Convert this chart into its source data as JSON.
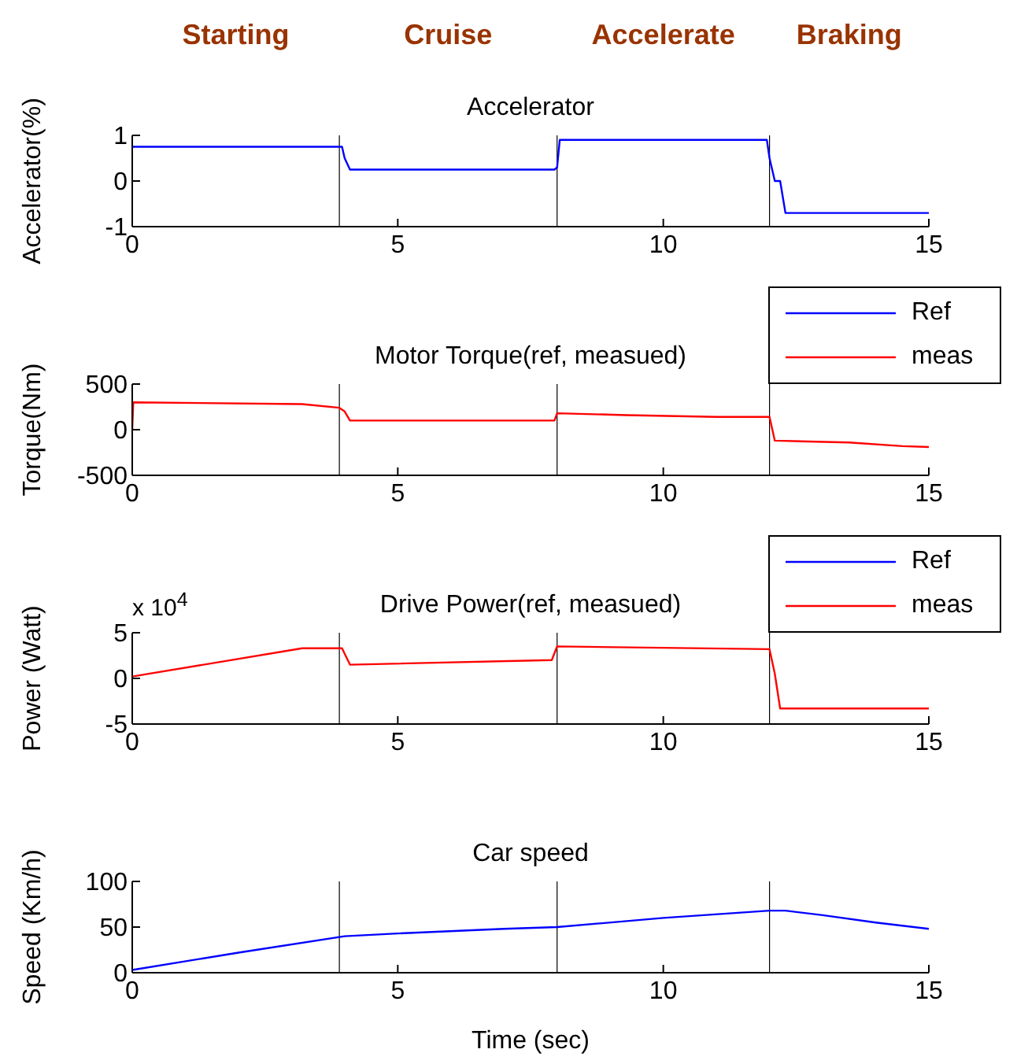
{
  "chart_data": [
    {
      "type": "line",
      "title": "Accelerator",
      "ylabel": "Accelerator(%)",
      "annotations": [
        "Starting",
        "Cruise",
        "Accelerate",
        "Braking"
      ],
      "x": [
        0,
        3.95,
        4.0,
        4.1,
        7.95,
        8.0,
        8.05,
        11.95,
        12.0,
        12.1,
        12.2,
        12.3,
        15
      ],
      "series": [
        {
          "color": "#0000ff",
          "values": [
            0.75,
            0.75,
            0.5,
            0.25,
            0.25,
            0.3,
            0.9,
            0.9,
            0.5,
            0.0,
            0.0,
            -0.7,
            -0.7
          ]
        }
      ],
      "xlim": [
        0,
        15
      ],
      "xticks": [
        0,
        5,
        10,
        15
      ],
      "ylim": [
        -1,
        1
      ],
      "yticks": [
        -1,
        0,
        1
      ],
      "ref_lines": [
        {
          "axis": "x",
          "value": 3.9,
          "color": "#000000"
        },
        {
          "axis": "x",
          "value": 8,
          "color": "#000000"
        },
        {
          "axis": "x",
          "value": 12,
          "color": "#000000"
        }
      ],
      "grid": false,
      "legend": false
    },
    {
      "type": "line",
      "title": "Motor Torque(ref, measued)",
      "ylabel": "Torque(Nm)",
      "x": [
        0,
        0.02,
        3.2,
        3.9,
        4.0,
        4.1,
        7.95,
        8.0,
        9.3,
        11.0,
        12.0,
        12.1,
        13.5,
        14.5,
        15
      ],
      "series": [
        {
          "name": "Ref",
          "color": "#0000ff",
          "values": [
            null,
            null,
            null,
            null,
            null,
            null,
            null,
            null,
            null,
            null,
            null,
            null,
            null,
            null,
            null
          ]
        },
        {
          "name": "meas",
          "color": "#ff0000",
          "values": [
            0,
            300,
            280,
            240,
            200,
            100,
            100,
            180,
            160,
            140,
            140,
            -120,
            -140,
            -180,
            -190
          ]
        }
      ],
      "xlim": [
        0,
        15
      ],
      "xticks": [
        0,
        5,
        10,
        15
      ],
      "ylim": [
        -500,
        500
      ],
      "yticks": [
        -500,
        0,
        500
      ],
      "ref_lines": [
        {
          "axis": "x",
          "value": 3.9,
          "color": "#000000"
        },
        {
          "axis": "x",
          "value": 8,
          "color": "#000000"
        },
        {
          "axis": "x",
          "value": 12,
          "color": "#000000"
        }
      ],
      "grid": false,
      "legend": "top right"
    },
    {
      "type": "line",
      "title": "Drive Power(ref, measued)",
      "ylabel": "Power (Watt)",
      "annotations": [
        "x 10$^{4}$"
      ],
      "x": [
        0,
        3.2,
        3.95,
        4.1,
        7.9,
        8.0,
        12.0,
        12.1,
        12.2,
        15
      ],
      "series": [
        {
          "name": "Ref",
          "color": "#0000ff",
          "values": [
            null,
            null,
            null,
            null,
            null,
            null,
            null,
            null,
            null,
            null
          ]
        },
        {
          "name": "meas",
          "color": "#ff0000",
          "values": [
            0.2,
            3.3,
            3.3,
            1.5,
            2.0,
            3.5,
            3.2,
            0.5,
            -3.3,
            -3.3
          ]
        }
      ],
      "xlim": [
        0,
        15
      ],
      "xticks": [
        0,
        5,
        10,
        15
      ],
      "ylim": [
        -5,
        5
      ],
      "yticks": [
        -5,
        0,
        5
      ],
      "ref_lines": [
        {
          "axis": "x",
          "value": 3.9,
          "color": "#000000"
        },
        {
          "axis": "x",
          "value": 8,
          "color": "#000000"
        },
        {
          "axis": "x",
          "value": 12,
          "color": "#000000"
        }
      ],
      "grid": false,
      "legend": "top right"
    },
    {
      "type": "line",
      "title": "Car speed",
      "ylabel": "Speed (Km/h)",
      "xlabel": "Time (sec)",
      "x": [
        0,
        2,
        4,
        5,
        7,
        8,
        10,
        12,
        12.3,
        13,
        14,
        15
      ],
      "series": [
        {
          "color": "#0000ff",
          "values": [
            3,
            22,
            40,
            43,
            48,
            50,
            60,
            68,
            68,
            63,
            55,
            48
          ]
        }
      ],
      "xlim": [
        0,
        15
      ],
      "xticks": [
        0,
        5,
        10,
        15
      ],
      "ylim": [
        0,
        100
      ],
      "yticks": [
        0,
        50,
        100
      ],
      "ref_lines": [
        {
          "axis": "x",
          "value": 3.9,
          "color": "#000000"
        },
        {
          "axis": "x",
          "value": 8,
          "color": "#000000"
        },
        {
          "axis": "x",
          "value": 12,
          "color": "#000000"
        }
      ],
      "grid": false,
      "legend": false
    }
  ]
}
